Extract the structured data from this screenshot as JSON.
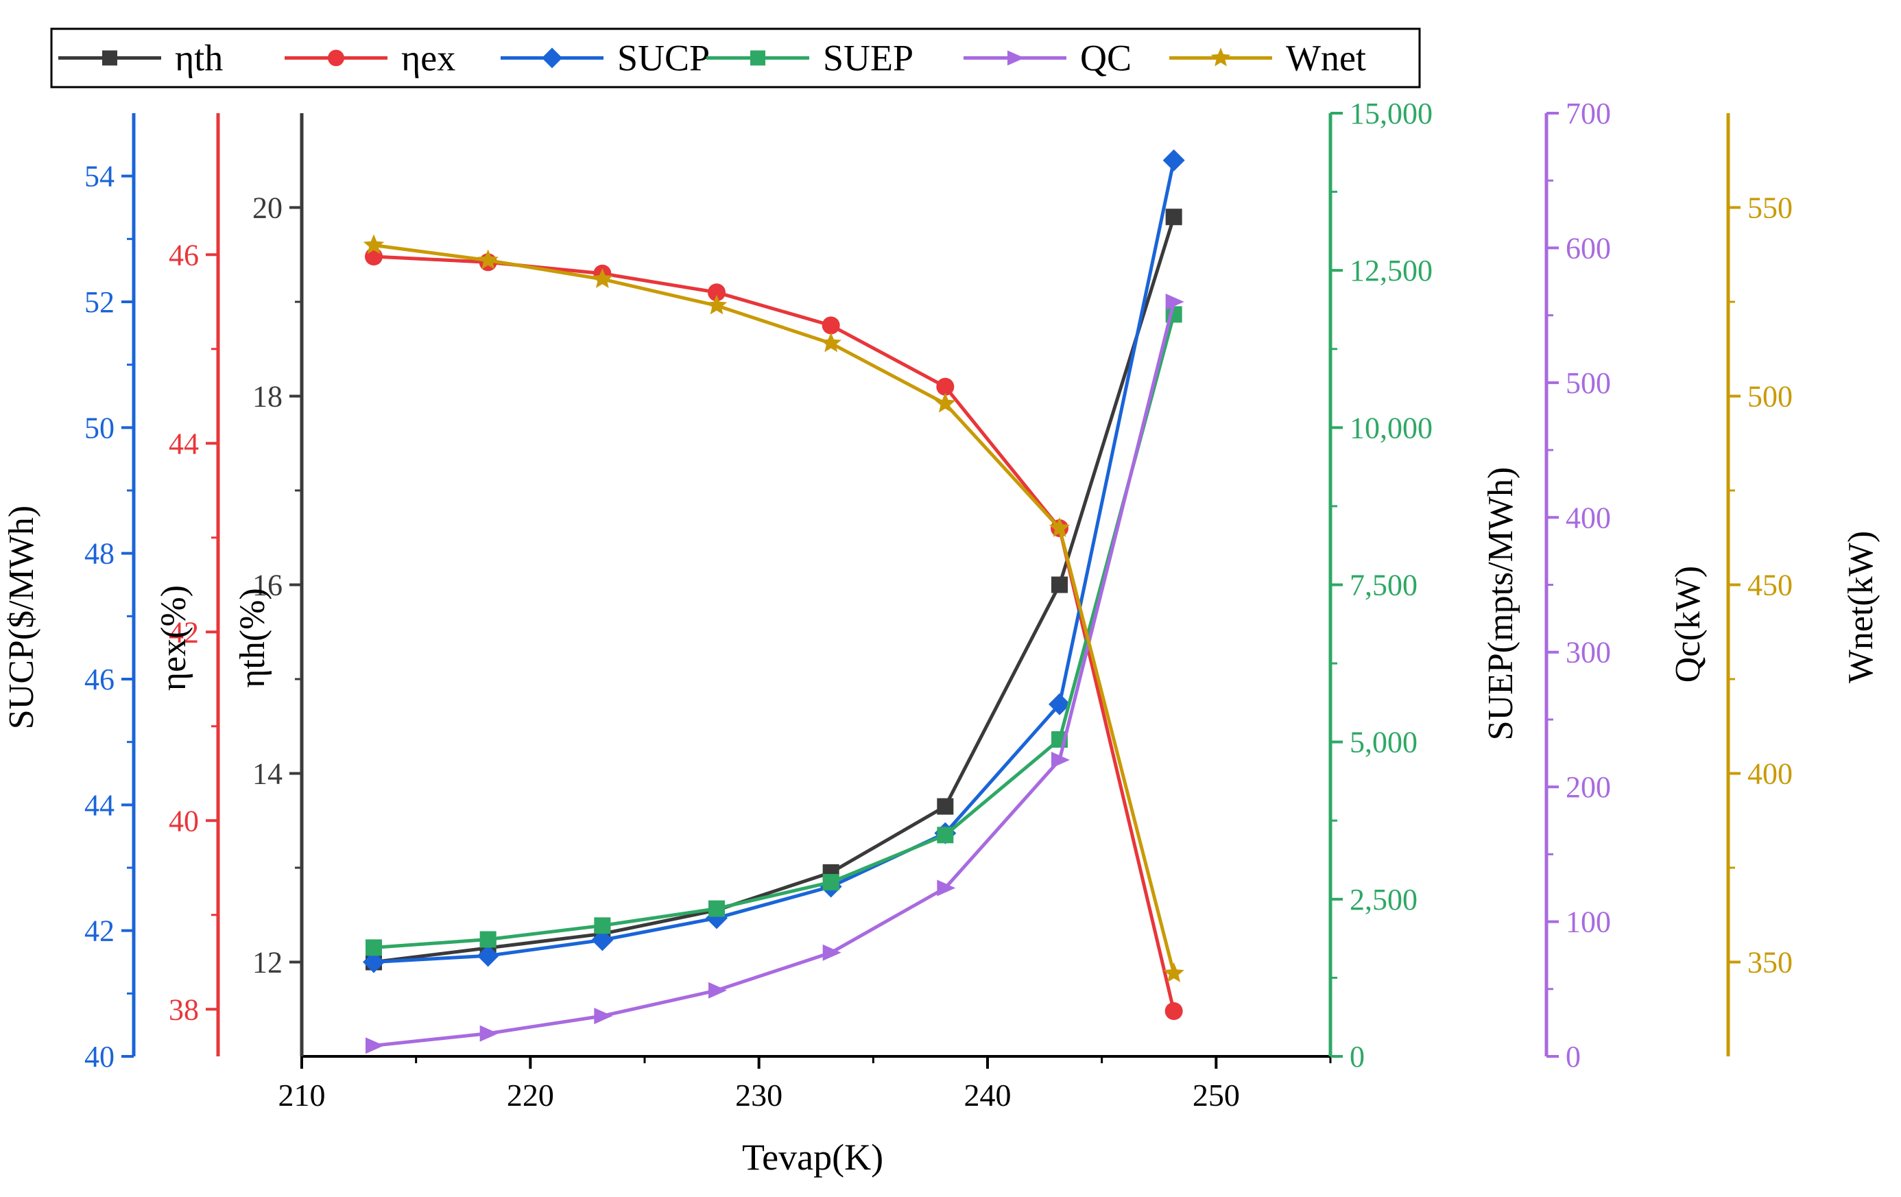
{
  "chart_data": {
    "type": "line",
    "title": "",
    "xlabel": "Tevap(K)",
    "x": [
      213.15,
      218.15,
      223.15,
      228.15,
      233.15,
      238.15,
      243.15,
      248.15
    ],
    "xlim": [
      210,
      255
    ],
    "xticks": [
      "210",
      "220",
      "230",
      "240",
      "250"
    ],
    "legend_position": "top",
    "series": [
      {
        "key": "eth",
        "name": "ηth",
        "color": "#3a3a3a",
        "marker": "square",
        "axis": "eth",
        "values": [
          12.0,
          12.15,
          12.3,
          12.55,
          12.95,
          13.65,
          16.0,
          19.9
        ]
      },
      {
        "key": "eex",
        "name": "ηex",
        "color": "#e8363a",
        "marker": "circle",
        "axis": "eex",
        "values": [
          45.98,
          45.92,
          45.8,
          45.6,
          45.25,
          44.6,
          43.1,
          37.98
        ]
      },
      {
        "key": "sucp",
        "name": "SUCP",
        "color": "#1a64d8",
        "marker": "diamond",
        "axis": "sucp",
        "values": [
          41.5,
          41.6,
          41.85,
          42.2,
          42.7,
          43.55,
          45.6,
          54.25
        ]
      },
      {
        "key": "suep",
        "name": "SUEP",
        "color": "#2ea865",
        "marker": "square",
        "axis": "suep",
        "values": [
          1730,
          1860,
          2080,
          2350,
          2770,
          3520,
          5040,
          11800
        ]
      },
      {
        "key": "qc",
        "name": "QC",
        "color": "#a86ae0",
        "marker": "triangle",
        "axis": "qc",
        "values": [
          8,
          17,
          30,
          49,
          77,
          125,
          220,
          560
        ]
      },
      {
        "key": "wnet",
        "name": "Wnet",
        "color": "#c99a06",
        "marker": "star",
        "axis": "wnet",
        "values": [
          540,
          536,
          531,
          524,
          514,
          498,
          465,
          347
        ]
      }
    ],
    "axes": [
      {
        "key": "sucp",
        "label": "SUCP($/MWh)",
        "color": "#1a64d8",
        "label_color": "#000000",
        "side": "left",
        "ylim": [
          40,
          55
        ],
        "ticks": [
          40,
          42,
          44,
          46,
          48,
          50,
          52,
          54
        ],
        "tick_labels": [
          "40",
          "42",
          "44",
          "46",
          "48",
          "50",
          "52",
          "54"
        ]
      },
      {
        "key": "eex",
        "label": "ηex(%)",
        "color": "#e8363a",
        "label_color": "#000000",
        "side": "left",
        "ylim": [
          37.5,
          47.5
        ],
        "ticks": [
          38,
          40,
          42,
          44,
          46
        ],
        "tick_labels": [
          "38",
          "40",
          "42",
          "44",
          "46"
        ]
      },
      {
        "key": "eth",
        "label": "ηth(%)",
        "color": "#3a3a3a",
        "label_color": "#000000",
        "side": "left",
        "ylim": [
          11,
          21
        ],
        "ticks": [
          12,
          14,
          16,
          18,
          20
        ],
        "tick_labels": [
          "12",
          "14",
          "16",
          "18",
          "20"
        ]
      },
      {
        "key": "suep",
        "label": "SUEP(mpts/MWh)",
        "color": "#2ea865",
        "label_color": "#000000",
        "side": "right",
        "ylim": [
          0,
          15000
        ],
        "ticks": [
          0,
          2500,
          5000,
          7500,
          10000,
          12500,
          15000
        ],
        "tick_labels": [
          "0",
          "2,500",
          "5,000",
          "7,500",
          "10,000",
          "12,500",
          "15,000"
        ]
      },
      {
        "key": "qc",
        "label": "Qc(kW)",
        "color": "#a86ae0",
        "label_color": "#000000",
        "side": "right",
        "ylim": [
          0,
          700
        ],
        "ticks": [
          0,
          100,
          200,
          300,
          400,
          500,
          600,
          700
        ],
        "tick_labels": [
          "0",
          "100",
          "200",
          "300",
          "400",
          "500",
          "600",
          "700"
        ]
      },
      {
        "key": "wnet",
        "label": "Wnet(kW)",
        "color": "#c99a06",
        "label_color": "#000000",
        "side": "right",
        "ylim": [
          325,
          575
        ],
        "ticks": [
          350,
          400,
          450,
          500,
          550
        ],
        "tick_labels": [
          "350",
          "400",
          "450",
          "500",
          "550"
        ]
      }
    ]
  }
}
